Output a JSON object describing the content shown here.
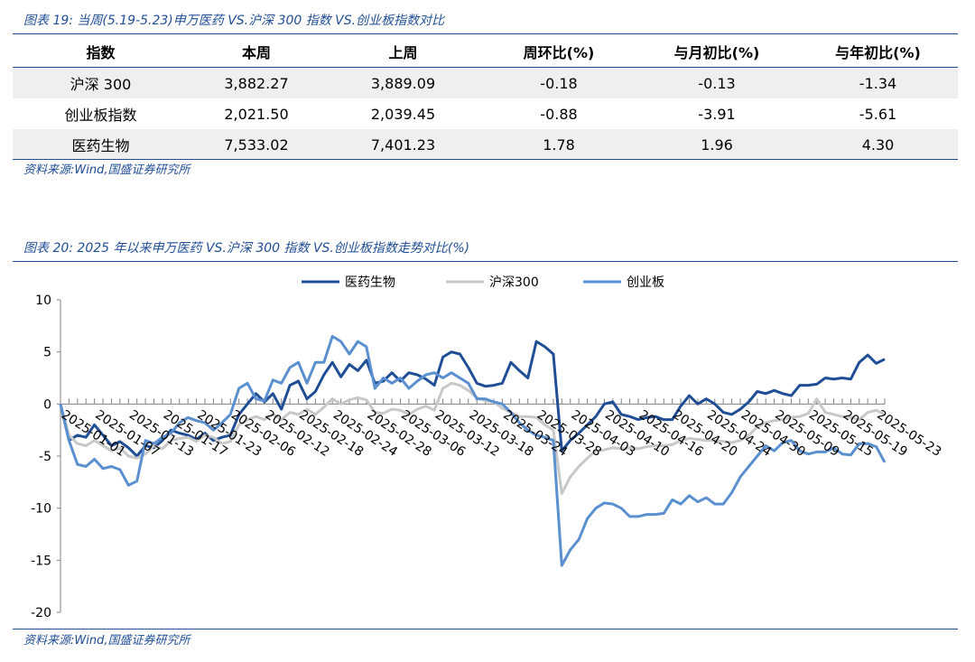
{
  "figure19": {
    "title": "图表 19: 当周(5.19-5.23)申万医药 VS.沪深 300 指数 VS.创业板指数对比",
    "source": "资料来源:Wind,国盛证券研究所",
    "headers": [
      "指数",
      "本周",
      "上周",
      "周环比(%)",
      "与月初比(%)",
      "与年初比(%)"
    ],
    "rows": [
      [
        "沪深 300",
        "3,882.27",
        "3,889.09",
        "-0.18",
        "-0.13",
        "-1.34"
      ],
      [
        "创业板指数",
        "2,021.50",
        "2,039.45",
        "-0.88",
        "-3.91",
        "-5.61"
      ],
      [
        "医药生物",
        "7,533.02",
        "7,401.23",
        "1.78",
        "1.96",
        "4.30"
      ]
    ]
  },
  "figure20": {
    "title": "图表 20: 2025 年以来申万医药 VS.沪深 300 指数 VS.创业板指数走势对比(%)",
    "source": "资料来源:Wind,国盛证券研究所"
  },
  "chart_data": {
    "type": "line",
    "title": "",
    "xlabel": "",
    "ylabel": "",
    "ylim": [
      -20,
      10
    ],
    "yticks": [
      10,
      5,
      0,
      -5,
      -10,
      -15,
      -20
    ],
    "xtick_labels": [
      "2025-01-01",
      "2025-01-07",
      "2025-01-13",
      "2025-01-17",
      "2025-01-23",
      "2025-02-06",
      "2025-02-12",
      "2025-02-18",
      "2025-02-24",
      "2025-02-28",
      "2025-03-06",
      "2025-03-12",
      "2025-03-18",
      "2025-03-24",
      "2025-03-28",
      "2025-04-03",
      "2025-04-10",
      "2025-04-16",
      "2025-04-20",
      "2025-04-24",
      "2025-04-30",
      "2025-05-09",
      "2025-05-15",
      "2025-05-19",
      "2025-05-23"
    ],
    "xtick_positions": [
      0,
      4,
      8,
      12,
      16,
      20,
      24,
      28,
      32,
      36,
      40,
      44,
      48,
      52,
      56,
      60,
      64,
      68,
      72,
      76,
      80,
      84,
      88,
      92,
      96
    ],
    "legend_position": "top-center",
    "grid": false,
    "series": [
      {
        "name": "医药生物",
        "color": "#1f4e96",
        "values": [
          0,
          -3.5,
          -3,
          -3.2,
          -2,
          -3,
          -4,
          -3.6,
          -4.2,
          -5,
          -4,
          -4.2,
          -3.5,
          -2.5,
          -2.8,
          -3,
          -3.4,
          -2.8,
          -3.5,
          -3.2,
          -3,
          -1,
          0,
          1,
          0.2,
          1,
          -0.5,
          1.8,
          2.2,
          0.5,
          1.2,
          2.8,
          4,
          2.6,
          3.8,
          3.2,
          4.2,
          2,
          2.2,
          3,
          2.2,
          3,
          2.8,
          2.4,
          1.8,
          4.5,
          5,
          4.8,
          3.5,
          2,
          1.7,
          1.8,
          2,
          4,
          3.2,
          2.5,
          6,
          5.5,
          4.8,
          -4.5,
          -3.5,
          -2.8,
          -2,
          -1.2,
          0,
          0.2,
          -1,
          -1.2,
          -1.5,
          -1.3,
          -1.2,
          -1.5,
          -1.5,
          -0.2,
          0.8,
          0,
          0.5,
          0,
          -0.8,
          -1,
          -0.5,
          0.2,
          1.2,
          1.0,
          1.3,
          1.0,
          0.8,
          1.8,
          1.8,
          1.9,
          2.5,
          2.4,
          2.5,
          2.4,
          4,
          4.7,
          3.9,
          4.3
        ]
      },
      {
        "name": "沪深300",
        "color": "#c8c8c8",
        "values": [
          0,
          -3,
          -3.8,
          -4,
          -3.5,
          -4,
          -4.5,
          -4.2,
          -5,
          -5.2,
          -4.8,
          -4,
          -4.3,
          -3.5,
          -3.3,
          -3.2,
          -3.6,
          -3,
          -3.2,
          -3.8,
          -3.6,
          -2,
          -1.5,
          -1.2,
          -1.5,
          -1,
          -1.5,
          -0.8,
          -1,
          -0.5,
          -1,
          -0.3,
          0.5,
          0,
          0.4,
          0.6,
          0.4,
          -0.8,
          -0.9,
          -0.5,
          -0.6,
          -1,
          -0.5,
          -0.2,
          -0.6,
          1.5,
          2,
          1.8,
          1.3,
          0.6,
          0.3,
          0.2,
          -0.4,
          -0.8,
          -1.2,
          -1.2,
          -1.3,
          -2,
          -2.5,
          -8.6,
          -7,
          -6,
          -5.2,
          -4.5,
          -4.4,
          -4.2,
          -4.3,
          -4.2,
          -4.3,
          -4.1,
          -4.0,
          -4.0,
          -3.9,
          -3.5,
          -3.3,
          -3.4,
          -3.5,
          -3.5,
          -3.6,
          -3.7,
          -3.5,
          -3,
          -2.2,
          -1.8,
          -1.6,
          -1.5,
          -1.3,
          -1.2,
          -0.9,
          0.5,
          -0.8,
          -1,
          -1.2,
          -1.3,
          -1.5,
          -0.8,
          -0.6,
          -1
        ]
      },
      {
        "name": "创业板",
        "color": "#5a8fd0",
        "values": [
          0,
          -3.5,
          -5.8,
          -6,
          -5.3,
          -6.2,
          -6.0,
          -6.3,
          -7.8,
          -7.4,
          -3.5,
          -3.8,
          -3.2,
          -2.8,
          -1.8,
          -1.3,
          -1.6,
          -1.8,
          -2.5,
          -1.8,
          -1.0,
          1.5,
          2.0,
          0.5,
          0.3,
          2.3,
          2.0,
          3.5,
          4.0,
          2.0,
          4,
          4.0,
          6.5,
          6.0,
          4.8,
          6.0,
          5.5,
          1.5,
          2.5,
          2.0,
          2.5,
          1.5,
          2.2,
          2.8,
          3.0,
          2.5,
          3.0,
          2.5,
          2.0,
          0.5,
          0.5,
          0.2,
          0,
          -0.8,
          -1.8,
          -2.5,
          -3.0,
          -3.2,
          -3.5,
          -15.5,
          -14,
          -13,
          -11,
          -10,
          -9.5,
          -9.6,
          -10,
          -10.8,
          -10.8,
          -10.6,
          -10.6,
          -10.5,
          -9.2,
          -9.6,
          -8.8,
          -9.4,
          -9.0,
          -9.6,
          -9.6,
          -8.5,
          -7,
          -6.0,
          -5.0,
          -4.0,
          -4.5,
          -3.7,
          -3.5,
          -4.5,
          -4.8,
          -4.6,
          -4.6,
          -4.2,
          -4.8,
          -4.9,
          -3.8,
          -3.8,
          -4.1,
          -5.6
        ]
      }
    ]
  }
}
